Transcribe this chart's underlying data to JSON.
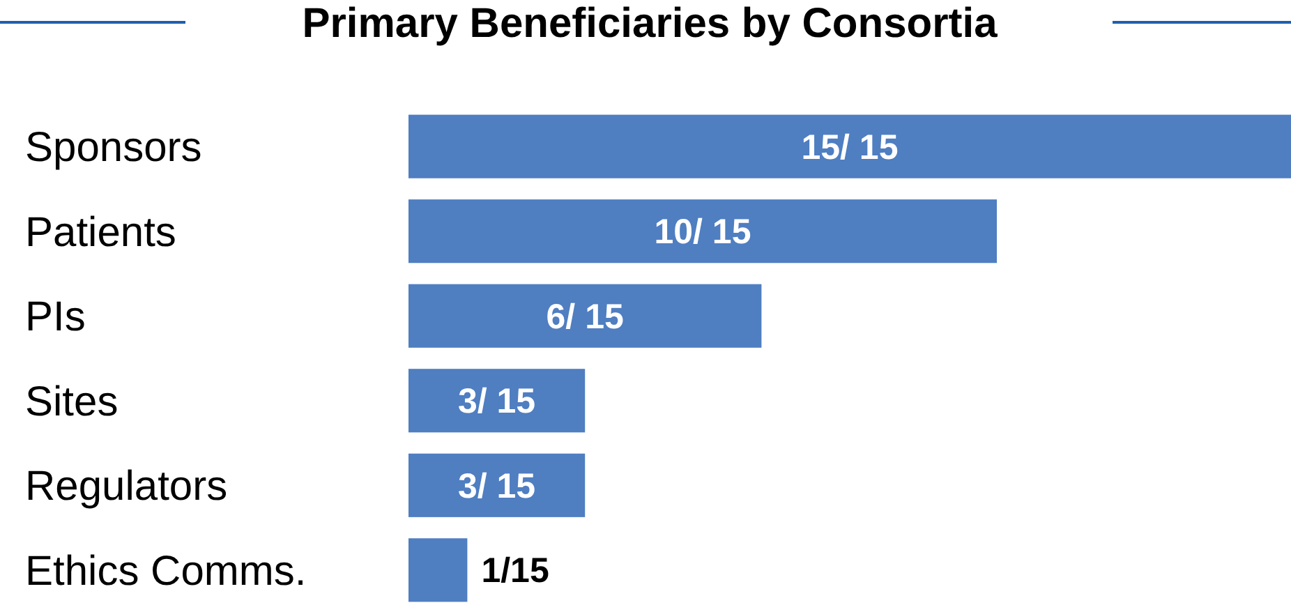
{
  "chart_data": {
    "type": "bar",
    "orientation": "horizontal",
    "title": "Primary Beneficiaries by Consortia",
    "categories": [
      "Sponsors",
      "Patients",
      "PIs",
      "Sites",
      "Regulators",
      "Ethics Comms."
    ],
    "values": [
      15,
      10,
      6,
      3,
      3,
      1
    ],
    "value_labels": [
      "15/ 15",
      "10/ 15",
      "6/ 15",
      "3/ 15",
      "3/ 15",
      "1/15"
    ],
    "color": "#4f7ec1",
    "xlim": [
      0,
      15
    ],
    "tick_labels": "y",
    "grid": false
  }
}
